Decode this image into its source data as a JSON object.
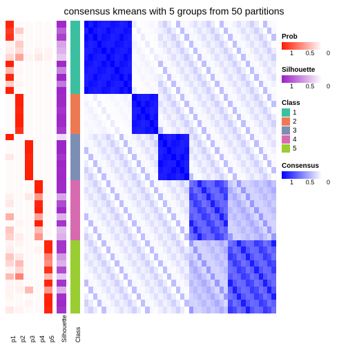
{
  "title": "consensus kmeans with 5 groups from 50 partitions",
  "title_fontsize": 14,
  "label_fontsize": 9,
  "layout": {
    "prob_cols": 5,
    "prob_col_w": 12,
    "gap": 6
  },
  "groups": [
    {
      "cls": 1,
      "rows": 11
    },
    {
      "cls": 2,
      "rows": 6
    },
    {
      "cls": 3,
      "rows": 7
    },
    {
      "cls": 4,
      "rows": 9
    },
    {
      "cls": 5,
      "rows": 11
    }
  ],
  "class_colors": {
    "1": "#3bbfa0",
    "2": "#ed7953",
    "3": "#7d8eb5",
    "4": "#d86ab0",
    "5": "#9acd32"
  },
  "prob_scale": {
    "low": "#ffffff",
    "high": "#ff1a00",
    "label": "Prob",
    "ticks": [
      "1",
      "0.5",
      "0"
    ]
  },
  "sil_scale": {
    "low": "#ffffff",
    "high": "#9a1fc4",
    "label": "Silhouette",
    "ticks": [
      "1",
      "0.5",
      "0"
    ]
  },
  "cons_scale": {
    "low": "#ffffff",
    "high": "#0000ff",
    "label": "Consensus",
    "ticks": [
      "1",
      "0.5",
      "0"
    ]
  },
  "class_legend": {
    "label": "Class",
    "items": [
      "1",
      "2",
      "3",
      "4",
      "5"
    ]
  },
  "prob_data": [
    [
      0.95,
      0.85,
      0.9,
      0.06,
      0.08,
      0.18,
      0.98,
      0.3,
      0.95,
      0.22,
      0.98,
      0.02,
      0.02,
      0.02,
      0.02,
      0.02,
      0.02,
      0.98,
      0.02,
      0.02,
      0.1,
      0.02,
      0.02,
      0.02,
      0.02,
      0.02,
      0.06,
      0.1,
      0.02,
      0.35,
      0.02,
      0.25,
      0.2,
      0.05,
      0.08,
      0.25,
      0.18,
      0.05,
      0.3,
      0.05,
      0.05,
      0.05,
      0.02,
      0.1
    ],
    [
      0.02,
      0.22,
      0.06,
      0.22,
      0.16,
      0.4,
      0.02,
      0.04,
      0.02,
      0.05,
      0.02,
      0.98,
      0.98,
      0.95,
      0.98,
      0.98,
      0.9,
      0.02,
      0.02,
      0.02,
      0.02,
      0.02,
      0.02,
      0.02,
      0.02,
      0.02,
      0.02,
      0.02,
      0.02,
      0.02,
      0.05,
      0.02,
      0.08,
      0.05,
      0.02,
      0.1,
      0.3,
      0.18,
      0.55,
      0.05,
      0.06,
      0.02,
      0.02,
      0.05
    ],
    [
      0.02,
      0.02,
      0.02,
      0.02,
      0.02,
      0.05,
      0.02,
      0.02,
      0.02,
      0.02,
      0.02,
      0.02,
      0.02,
      0.02,
      0.02,
      0.02,
      0.02,
      0.02,
      0.98,
      0.98,
      0.95,
      0.98,
      0.98,
      0.98,
      0.02,
      0.02,
      0.1,
      0.02,
      0.02,
      0.02,
      0.02,
      0.02,
      0.02,
      0.02,
      0.02,
      0.02,
      0.02,
      0.02,
      0.02,
      0.02,
      0.3,
      0.02,
      0.05,
      0.02
    ],
    [
      0.02,
      0.02,
      0.02,
      0.02,
      0.05,
      0.1,
      0.02,
      0.02,
      0.02,
      0.02,
      0.02,
      0.02,
      0.02,
      0.02,
      0.02,
      0.02,
      0.02,
      0.02,
      0.02,
      0.02,
      0.02,
      0.02,
      0.02,
      0.02,
      0.98,
      0.98,
      0.45,
      0.95,
      0.98,
      0.4,
      0.98,
      0.3,
      0.45,
      0.02,
      0.05,
      0.02,
      0.02,
      0.02,
      0.02,
      0.02,
      0.02,
      0.02,
      0.02,
      0.02
    ],
    [
      0.02,
      0.02,
      0.02,
      0.02,
      0.05,
      0.05,
      0.02,
      0.02,
      0.02,
      0.02,
      0.02,
      0.02,
      0.02,
      0.02,
      0.02,
      0.02,
      0.02,
      0.02,
      0.02,
      0.02,
      0.02,
      0.02,
      0.02,
      0.02,
      0.02,
      0.02,
      0.02,
      0.02,
      0.02,
      0.02,
      0.02,
      0.02,
      0.02,
      0.95,
      0.95,
      0.55,
      0.5,
      0.9,
      0.3,
      0.95,
      0.45,
      0.96,
      0.98,
      0.95
    ]
  ],
  "sil_data": [
    0.95,
    0.7,
    0.85,
    0.4,
    0.35,
    0.25,
    0.95,
    0.55,
    0.96,
    0.6,
    0.97,
    0.95,
    0.95,
    0.9,
    0.95,
    0.95,
    0.88,
    0.15,
    0.97,
    0.97,
    0.9,
    0.97,
    0.95,
    0.96,
    0.95,
    0.95,
    0.4,
    0.8,
    0.95,
    0.35,
    0.9,
    0.3,
    0.35,
    0.9,
    0.9,
    0.45,
    0.35,
    0.8,
    0.25,
    0.9,
    0.35,
    0.92,
    0.95,
    0.9
  ],
  "cons_pattern": {
    "diag_noise": [
      0.05,
      0.1,
      0.15,
      0.08,
      0.06,
      0.12,
      0.2,
      0.07
    ],
    "off_block": [
      0.0,
      0.02,
      0.05,
      0.08,
      0.03,
      0.12,
      0.18,
      0.25,
      0.06,
      0.1
    ]
  },
  "axis_labels": {
    "prob": [
      "p1",
      "p2",
      "p3",
      "p4",
      "p5"
    ],
    "sil": "Silhouette",
    "cls": "Class"
  }
}
